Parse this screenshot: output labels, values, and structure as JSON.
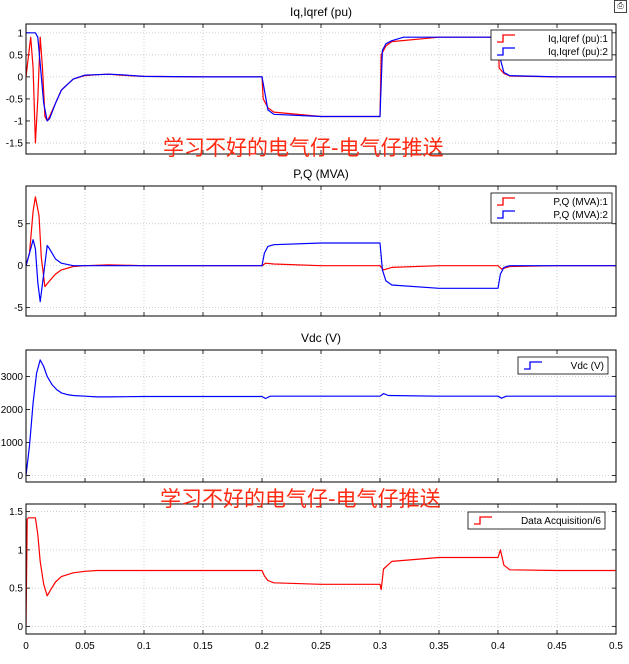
{
  "window": {
    "corner_icon": "print-icon"
  },
  "watermark": {
    "text": "学习不好的电气仔-电气仔推送"
  },
  "x_ticks": [
    0,
    0.05,
    0.1,
    0.15,
    0.2,
    0.25,
    0.3,
    0.35,
    0.4,
    0.45,
    0.5
  ],
  "x_tick_labels": [
    "0",
    "0.05",
    "0.1",
    "0.15",
    "0.2",
    "0.25",
    "0.3",
    "0.35",
    "0.4",
    "0.45",
    "0.5"
  ],
  "chart_data": [
    {
      "type": "line",
      "title": "Iq,Iqref (pu)",
      "xlim": [
        0,
        0.5
      ],
      "ylim": [
        -1.75,
        1.2
      ],
      "yticks": [
        -1.5,
        -1,
        -0.5,
        0,
        0.5,
        1
      ],
      "ytick_labels": [
        "-1.5",
        "-1",
        "-0.5",
        "0",
        "0.5",
        "1"
      ],
      "grid": true,
      "legend_position": "top-right",
      "series": [
        {
          "name": "Iq,Iqref (pu):1",
          "color": "#ff0000",
          "x": [
            0,
            0.004,
            0.006,
            0.008,
            0.01,
            0.012,
            0.014,
            0.016,
            0.018,
            0.02,
            0.025,
            0.03,
            0.04,
            0.05,
            0.06,
            0.07,
            0.08,
            0.1,
            0.15,
            0.2,
            0.201,
            0.205,
            0.21,
            0.25,
            0.3,
            0.301,
            0.305,
            0.31,
            0.35,
            0.4,
            0.401,
            0.405,
            0.41,
            0.45,
            0.5
          ],
          "y": [
            0,
            0.9,
            0.2,
            -1.5,
            -0.5,
            0.9,
            0.2,
            -0.9,
            -1.0,
            -0.9,
            -0.6,
            -0.3,
            -0.05,
            0.03,
            0.05,
            0.06,
            0.04,
            0.01,
            0.0,
            0.0,
            -0.5,
            -0.7,
            -0.8,
            -0.9,
            -0.9,
            0.5,
            0.7,
            0.8,
            0.9,
            0.9,
            0.2,
            0.08,
            0.02,
            0.0,
            0.0
          ]
        },
        {
          "name": "Iq,Iqref (pu):2",
          "color": "#0000ff",
          "x": [
            0,
            0.008,
            0.01,
            0.012,
            0.015,
            0.018,
            0.02,
            0.025,
            0.03,
            0.04,
            0.05,
            0.06,
            0.07,
            0.08,
            0.1,
            0.15,
            0.2,
            0.202,
            0.205,
            0.21,
            0.25,
            0.3,
            0.302,
            0.305,
            0.31,
            0.32,
            0.35,
            0.4,
            0.402,
            0.405,
            0.41,
            0.45,
            0.5
          ],
          "y": [
            1.0,
            1.0,
            0.9,
            0.3,
            -0.6,
            -1.0,
            -0.95,
            -0.6,
            -0.3,
            -0.05,
            0.04,
            0.05,
            0.06,
            0.05,
            0.01,
            0.0,
            0.0,
            -0.3,
            -0.75,
            -0.85,
            -0.9,
            -0.9,
            0.6,
            0.75,
            0.82,
            0.9,
            0.9,
            0.9,
            0.4,
            0.1,
            0.03,
            0.0,
            0.0
          ]
        }
      ]
    },
    {
      "type": "line",
      "title": "P,Q (MVA)",
      "xlim": [
        0,
        0.5
      ],
      "ylim": [
        -6,
        9.5
      ],
      "yticks": [
        -5,
        0,
        5
      ],
      "ytick_labels": [
        "-5",
        "0",
        "5"
      ],
      "grid": true,
      "legend_position": "top-right",
      "series": [
        {
          "name": "P,Q (MVA):1",
          "color": "#ff0000",
          "x": [
            0,
            0.003,
            0.006,
            0.008,
            0.011,
            0.013,
            0.016,
            0.02,
            0.025,
            0.03,
            0.04,
            0.05,
            0.07,
            0.1,
            0.2,
            0.203,
            0.21,
            0.25,
            0.3,
            0.303,
            0.31,
            0.35,
            0.4,
            0.403,
            0.41,
            0.45,
            0.5
          ],
          "y": [
            0,
            1.5,
            6.5,
            8.2,
            6.0,
            1.0,
            -2.5,
            -1.8,
            -1.0,
            -0.5,
            -0.1,
            0.0,
            0.1,
            0.0,
            0.0,
            0.3,
            0.2,
            0.0,
            0.0,
            -0.5,
            -0.2,
            0.0,
            0.0,
            -0.4,
            -0.1,
            0.0,
            0.0
          ]
        },
        {
          "name": "P,Q (MVA):2",
          "color": "#0000ff",
          "x": [
            0,
            0.004,
            0.006,
            0.008,
            0.01,
            0.012,
            0.015,
            0.018,
            0.02,
            0.025,
            0.03,
            0.04,
            0.05,
            0.07,
            0.1,
            0.2,
            0.202,
            0.205,
            0.21,
            0.25,
            0.3,
            0.302,
            0.305,
            0.31,
            0.35,
            0.4,
            0.402,
            0.405,
            0.41,
            0.45,
            0.5
          ],
          "y": [
            0,
            2.0,
            3.1,
            2.0,
            -2.0,
            -4.3,
            -1.0,
            2.4,
            2.0,
            0.8,
            0.3,
            0.0,
            0.0,
            0.0,
            0.0,
            0.0,
            1.5,
            2.3,
            2.5,
            2.7,
            2.7,
            -0.5,
            -1.8,
            -2.3,
            -2.7,
            -2.7,
            -1.0,
            -0.2,
            0.0,
            0.0,
            0.0
          ]
        }
      ]
    },
    {
      "type": "line",
      "title": "Vdc (V)",
      "xlim": [
        0,
        0.5
      ],
      "ylim": [
        -200,
        3800
      ],
      "yticks": [
        0,
        1000,
        2000,
        3000
      ],
      "ytick_labels": [
        "0",
        "1000",
        "2000",
        "3000"
      ],
      "grid": true,
      "legend_position": "top-right",
      "series": [
        {
          "name": "Vdc (V)",
          "color": "#0000ff",
          "x": [
            0,
            0.003,
            0.006,
            0.009,
            0.012,
            0.015,
            0.018,
            0.022,
            0.026,
            0.03,
            0.035,
            0.04,
            0.05,
            0.06,
            0.07,
            0.1,
            0.2,
            0.203,
            0.207,
            0.25,
            0.3,
            0.303,
            0.307,
            0.35,
            0.4,
            0.403,
            0.407,
            0.45,
            0.5
          ],
          "y": [
            0,
            900,
            2200,
            3100,
            3500,
            3300,
            3000,
            2750,
            2600,
            2500,
            2450,
            2420,
            2400,
            2380,
            2380,
            2390,
            2390,
            2330,
            2400,
            2400,
            2400,
            2480,
            2420,
            2400,
            2400,
            2340,
            2400,
            2400,
            2400
          ]
        }
      ]
    },
    {
      "type": "line",
      "title": "",
      "xlim": [
        0,
        0.5
      ],
      "ylim": [
        -0.1,
        1.6
      ],
      "yticks": [
        0,
        0.5,
        1,
        1.5
      ],
      "ytick_labels": [
        "0",
        "0.5",
        "1",
        "1.5"
      ],
      "grid": true,
      "legend_position": "top-right",
      "series": [
        {
          "name": "Data Acquisition/6",
          "color": "#ff0000",
          "x": [
            0,
            0.001,
            0.002,
            0.008,
            0.01,
            0.012,
            0.015,
            0.018,
            0.021,
            0.025,
            0.03,
            0.04,
            0.05,
            0.06,
            0.07,
            0.1,
            0.2,
            0.202,
            0.205,
            0.21,
            0.25,
            0.3,
            0.301,
            0.303,
            0.31,
            0.35,
            0.4,
            0.402,
            0.405,
            0.41,
            0.45,
            0.5
          ],
          "y": [
            0,
            1.4,
            1.42,
            1.42,
            1.2,
            0.85,
            0.55,
            0.4,
            0.48,
            0.58,
            0.65,
            0.7,
            0.72,
            0.73,
            0.73,
            0.73,
            0.73,
            0.66,
            0.6,
            0.57,
            0.55,
            0.55,
            0.48,
            0.75,
            0.85,
            0.9,
            0.9,
            1.0,
            0.8,
            0.74,
            0.73,
            0.73
          ]
        }
      ]
    }
  ]
}
